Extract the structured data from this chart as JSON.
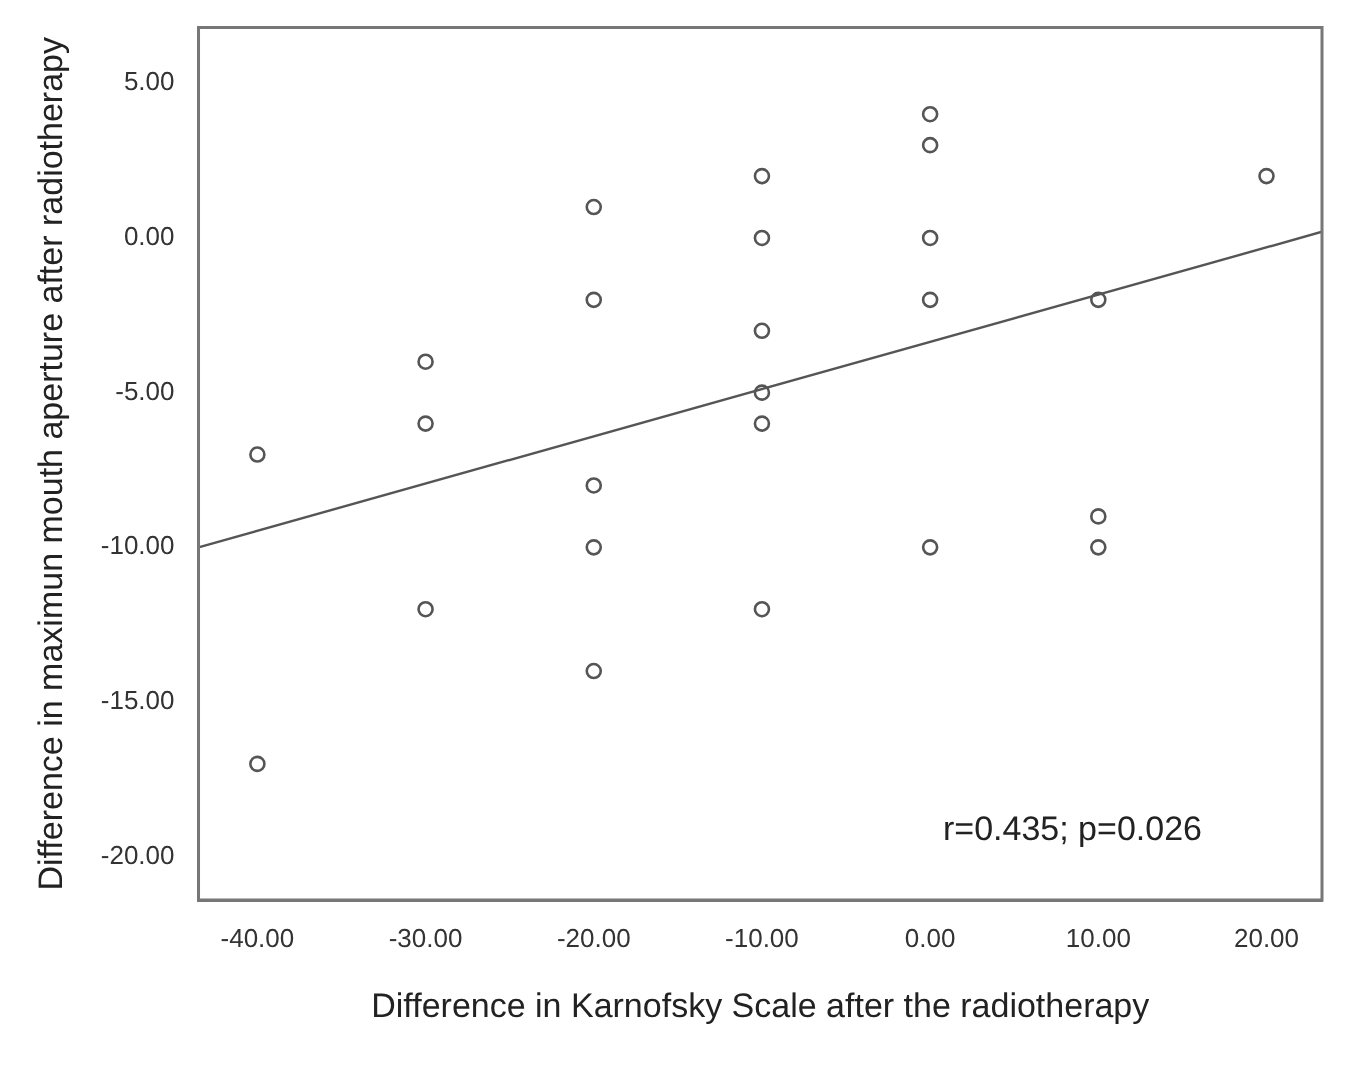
{
  "chart_data": {
    "type": "scatter",
    "xlabel": "Difference in Karnofsky Scale after the radiotherapy",
    "ylabel": "Difference in maximun mouth aperture after radiotherapy",
    "xlim": [
      -43.5,
      23.3
    ],
    "ylim": [
      -21.4,
      6.8
    ],
    "xticks": [
      {
        "value": -40,
        "label": "-40.00"
      },
      {
        "value": -30,
        "label": "-30.00"
      },
      {
        "value": -20,
        "label": "-20.00"
      },
      {
        "value": -10,
        "label": "-10.00"
      },
      {
        "value": 0,
        "label": "0.00"
      },
      {
        "value": 10,
        "label": "10.00"
      },
      {
        "value": 20,
        "label": "20.00"
      }
    ],
    "yticks": [
      {
        "value": -20,
        "label": "-20.00"
      },
      {
        "value": -15,
        "label": "-15.00"
      },
      {
        "value": -10,
        "label": "-10.00"
      },
      {
        "value": -5,
        "label": "-5.00"
      },
      {
        "value": 0,
        "label": "0.00"
      },
      {
        "value": 5,
        "label": "5.00"
      }
    ],
    "series": [
      {
        "type": "scatter",
        "color": "#555555",
        "x": [
          -40,
          -40,
          -30,
          -30,
          -30,
          -20,
          -20,
          -20,
          -20,
          -20,
          -10,
          -10,
          -10,
          -10,
          -10,
          -10,
          0,
          0,
          0,
          0,
          0,
          10,
          10,
          10,
          20
        ],
        "values": [
          -7,
          -17,
          -4,
          -6,
          -12,
          1,
          -2,
          -8,
          -10,
          -14,
          2,
          0,
          -3,
          -5,
          -6,
          -12,
          4,
          3,
          0,
          -2,
          -10,
          -2,
          -9,
          -10,
          2
        ]
      },
      {
        "type": "line",
        "color": "#555555",
        "x": [
          -43.5,
          23.3
        ],
        "values": [
          -10,
          0.2
        ],
        "marker": "none"
      }
    ],
    "marker": "circle",
    "grid": false,
    "legend": false,
    "annotations": [
      "r=0.435; p=0.026"
    ]
  }
}
